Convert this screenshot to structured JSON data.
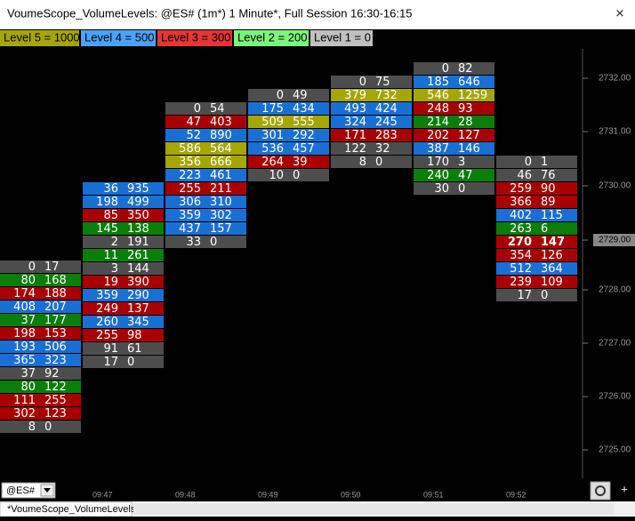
{
  "window": {
    "title": "VoumeScope_VolumeLevels: @ES# (1m*) 1 Minute*, Full Session 16:30-16:15",
    "close": "✕"
  },
  "legend": [
    {
      "label": "Level 5 = 1000",
      "color": "#a6a600"
    },
    {
      "label": "Level 4 = 500",
      "color": "#4aa3ff"
    },
    {
      "label": "Level 3 = 300",
      "color": "#e53535"
    },
    {
      "label": "Level 2 = 200",
      "color": "#7cf57c"
    },
    {
      "label": "Level 1 = 0",
      "color": "#c0c0c0"
    }
  ],
  "columns": [
    {
      "time": null,
      "cells": [
        {
          "bid": 0,
          "ask": 17,
          "color": "#4d4d4d"
        },
        {
          "bid": 80,
          "ask": 168,
          "color": "#0a7d0a"
        },
        {
          "bid": 174,
          "ask": 188,
          "color": "#a80000"
        },
        {
          "bid": 408,
          "ask": 207,
          "color": "#1a6fd4"
        },
        {
          "bid": 37,
          "ask": 177,
          "color": "#0a7d0a"
        },
        {
          "bid": 198,
          "ask": 153,
          "color": "#a80000"
        },
        {
          "bid": 193,
          "ask": 506,
          "color": "#1a6fd4"
        },
        {
          "bid": 365,
          "ask": 323,
          "color": "#1a6fd4"
        },
        {
          "bid": 37,
          "ask": 92,
          "color": "#4d4d4d"
        },
        {
          "bid": 80,
          "ask": 122,
          "color": "#0a7d0a"
        },
        {
          "bid": 111,
          "ask": 255,
          "color": "#a80000"
        },
        {
          "bid": 302,
          "ask": 123,
          "color": "#a80000"
        },
        {
          "bid": 8,
          "ask": 0,
          "color": "#4d4d4d"
        }
      ]
    },
    {
      "time": "09:47",
      "cells": [
        {
          "bid": 36,
          "ask": 935,
          "color": "#1a6fd4"
        },
        {
          "bid": 198,
          "ask": 499,
          "color": "#1a6fd4"
        },
        {
          "bid": 85,
          "ask": 350,
          "color": "#a80000"
        },
        {
          "bid": 145,
          "ask": 138,
          "color": "#0a7d0a"
        },
        {
          "bid": 2,
          "ask": 191,
          "color": "#4d4d4d"
        },
        {
          "bid": 11,
          "ask": 261,
          "color": "#0a7d0a"
        },
        {
          "bid": 3,
          "ask": 144,
          "color": "#4d4d4d"
        },
        {
          "bid": 19,
          "ask": 390,
          "color": "#a80000"
        },
        {
          "bid": 359,
          "ask": 290,
          "color": "#1a6fd4"
        },
        {
          "bid": 249,
          "ask": 137,
          "color": "#a80000"
        },
        {
          "bid": 260,
          "ask": 345,
          "color": "#1a6fd4"
        },
        {
          "bid": 255,
          "ask": 98,
          "color": "#a80000"
        },
        {
          "bid": 91,
          "ask": 61,
          "color": "#4d4d4d"
        },
        {
          "bid": 17,
          "ask": 0,
          "color": "#4d4d4d"
        }
      ]
    },
    {
      "time": "09:48",
      "cells": [
        {
          "bid": 0,
          "ask": 54,
          "color": "#4d4d4d"
        },
        {
          "bid": 47,
          "ask": 403,
          "color": "#a80000"
        },
        {
          "bid": 52,
          "ask": 890,
          "color": "#1a6fd4"
        },
        {
          "bid": 586,
          "ask": 564,
          "color": "#a6a600"
        },
        {
          "bid": 356,
          "ask": 666,
          "color": "#a6a600"
        },
        {
          "bid": 223,
          "ask": 461,
          "color": "#1a6fd4"
        },
        {
          "bid": 255,
          "ask": 211,
          "color": "#a80000"
        },
        {
          "bid": 306,
          "ask": 310,
          "color": "#1a6fd4"
        },
        {
          "bid": 359,
          "ask": 302,
          "color": "#1a6fd4"
        },
        {
          "bid": 437,
          "ask": 157,
          "color": "#1a6fd4"
        },
        {
          "bid": 33,
          "ask": 0,
          "color": "#4d4d4d"
        }
      ]
    },
    {
      "time": "09:49",
      "cells": [
        {
          "bid": 0,
          "ask": 49,
          "color": "#4d4d4d"
        },
        {
          "bid": 175,
          "ask": 434,
          "color": "#1a6fd4"
        },
        {
          "bid": 509,
          "ask": 555,
          "color": "#a6a600"
        },
        {
          "bid": 301,
          "ask": 292,
          "color": "#1a6fd4"
        },
        {
          "bid": 536,
          "ask": 457,
          "color": "#1a6fd4"
        },
        {
          "bid": 264,
          "ask": 39,
          "color": "#a80000"
        },
        {
          "bid": 10,
          "ask": 0,
          "color": "#4d4d4d"
        }
      ]
    },
    {
      "time": "09:50",
      "cells": [
        {
          "bid": 0,
          "ask": 75,
          "color": "#4d4d4d"
        },
        {
          "bid": 379,
          "ask": 732,
          "color": "#a6a600"
        },
        {
          "bid": 493,
          "ask": 424,
          "color": "#1a6fd4"
        },
        {
          "bid": 324,
          "ask": 245,
          "color": "#1a6fd4"
        },
        {
          "bid": 171,
          "ask": 283,
          "color": "#a80000"
        },
        {
          "bid": 122,
          "ask": 32,
          "color": "#4d4d4d"
        },
        {
          "bid": 8,
          "ask": 0,
          "color": "#4d4d4d"
        }
      ]
    },
    {
      "time": "09:51",
      "cells": [
        {
          "bid": 0,
          "ask": 82,
          "color": "#4d4d4d"
        },
        {
          "bid": 185,
          "ask": 646,
          "color": "#1a6fd4"
        },
        {
          "bid": 546,
          "ask": 1259,
          "color": "#a6a600"
        },
        {
          "bid": 248,
          "ask": 93,
          "color": "#a80000"
        },
        {
          "bid": 214,
          "ask": 28,
          "color": "#0a7d0a"
        },
        {
          "bid": 202,
          "ask": 127,
          "color": "#a80000"
        },
        {
          "bid": 387,
          "ask": 146,
          "color": "#1a6fd4"
        },
        {
          "bid": 170,
          "ask": 3,
          "color": "#4d4d4d"
        },
        {
          "bid": 240,
          "ask": 47,
          "color": "#0a7d0a"
        },
        {
          "bid": 30,
          "ask": 0,
          "color": "#4d4d4d"
        }
      ]
    },
    {
      "time": "09:52",
      "cells": [
        {
          "bid": 0,
          "ask": 1,
          "color": "#4d4d4d"
        },
        {
          "bid": 46,
          "ask": 76,
          "color": "#4d4d4d"
        },
        {
          "bid": 259,
          "ask": 90,
          "color": "#a80000"
        },
        {
          "bid": 366,
          "ask": 89,
          "color": "#a80000"
        },
        {
          "bid": 402,
          "ask": 115,
          "color": "#1a6fd4"
        },
        {
          "bid": 263,
          "ask": 6,
          "color": "#0a7d0a"
        },
        {
          "bid": 270,
          "ask": 147,
          "color": "#a80000",
          "bold": true
        },
        {
          "bid": 354,
          "ask": 126,
          "color": "#a80000"
        },
        {
          "bid": 512,
          "ask": 364,
          "color": "#1a6fd4"
        },
        {
          "bid": 239,
          "ask": 109,
          "color": "#a80000"
        },
        {
          "bid": 17,
          "ask": 0,
          "color": "#4d4d4d"
        }
      ]
    }
  ],
  "price_axis": {
    "labels": [
      "2732.00",
      "2731.00",
      "2730.00",
      "2729.00",
      "2728.00",
      "2727.00",
      "2726.00",
      "2725.00"
    ],
    "current": "2729.00"
  },
  "symbol": "@ES#",
  "tab": "*VoumeScope_VolumeLevels",
  "plus": "+"
}
